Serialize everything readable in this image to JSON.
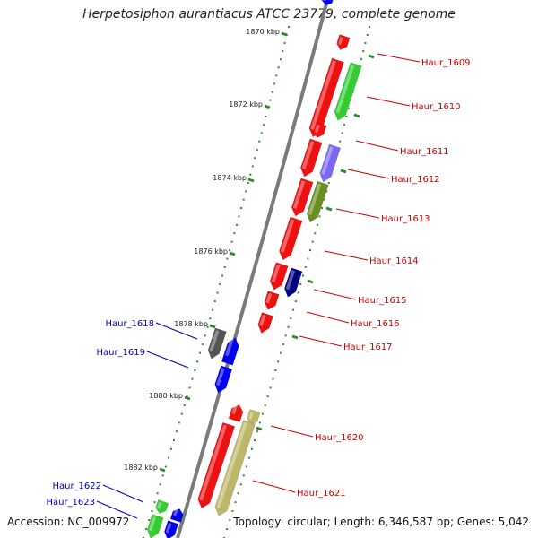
{
  "title": "Herpetosiphon aurantiacus ATCC 23779, complete genome",
  "footer": {
    "accession": "Accession: NC_009972",
    "summary": "Topology: circular; Length: 6,346,587 bp; Genes: 5,042"
  },
  "colors": {
    "backbone": "#7a7a7a",
    "tick": "#2e8b2e",
    "label_right": "#cc0000",
    "label_left": "#0000bb",
    "gene_red": "#ee1111",
    "gene_green": "#33cc33",
    "gene_purple": "#7b68ee",
    "gene_olive": "#6b8e23",
    "gene_navy": "#000080",
    "gene_gray": "#555555",
    "gene_blue": "#0000ee",
    "gene_khaki": "#bdb76b"
  },
  "kbp_labels": [
    "1870 kbp",
    "1872 kbp",
    "1874 kbp",
    "1876 kbp",
    "1878 kbp",
    "1880 kbp",
    "1882 kbp"
  ],
  "gene_labels_right": [
    "Haur_1609",
    "Haur_1610",
    "Haur_1611",
    "Haur_1612",
    "Haur_1613",
    "Haur_1614",
    "Haur_1615",
    "Haur_1616",
    "Haur_1617",
    "Haur_1620",
    "Haur_1621"
  ],
  "gene_labels_left": [
    "Haur_1618",
    "Haur_1619",
    "Haur_1622",
    "Haur_1623"
  ]
}
